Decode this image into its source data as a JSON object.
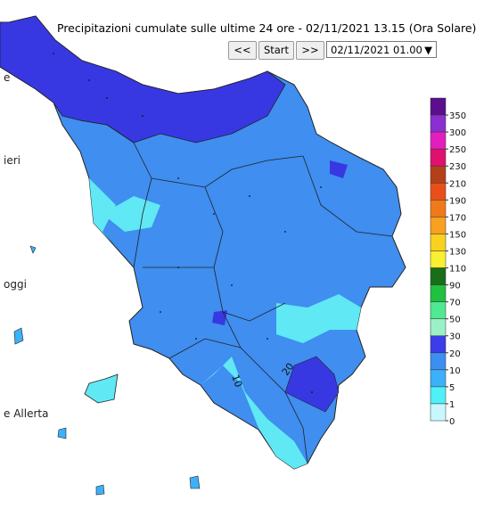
{
  "header": {
    "title": "Precipitazioni cumulate sulle ultime 24 ore - 02/11/2021 13.15 (Ora Solare)",
    "buttons": [
      "<<",
      "Start",
      ">>"
    ],
    "date_select": "02/11/2021 01.00"
  },
  "sidebar": [
    "e",
    "ieri",
    "oggi",
    "e Allerta"
  ],
  "contour_labels": [
    "10",
    "20"
  ],
  "legend": {
    "items": [
      {
        "label": "350",
        "color": "#5b0f8e"
      },
      {
        "label": "300",
        "color": "#8b2fd0"
      },
      {
        "label": "250",
        "color": "#e21fbe"
      },
      {
        "label": "230",
        "color": "#e0106e"
      },
      {
        "label": "210",
        "color": "#b4401a"
      },
      {
        "label": "190",
        "color": "#e8501a"
      },
      {
        "label": "170",
        "color": "#f07a1a"
      },
      {
        "label": "150",
        "color": "#f8a020"
      },
      {
        "label": "130",
        "color": "#f8d21e"
      },
      {
        "label": "110",
        "color": "#f8f030"
      },
      {
        "label": "90",
        "color": "#1a6e1a"
      },
      {
        "label": "70",
        "color": "#20c040"
      },
      {
        "label": "50",
        "color": "#50e890"
      },
      {
        "label": "30",
        "color": "#9cf0c8"
      },
      {
        "label": "20",
        "color": "#3c3ce8"
      },
      {
        "label": "10",
        "color": "#3c8ef0"
      },
      {
        "label": "5",
        "color": "#3cb0f8"
      },
      {
        "label": "1",
        "color": "#50f0f8"
      },
      {
        "label": "0",
        "color": "#c8f8ff"
      }
    ]
  }
}
